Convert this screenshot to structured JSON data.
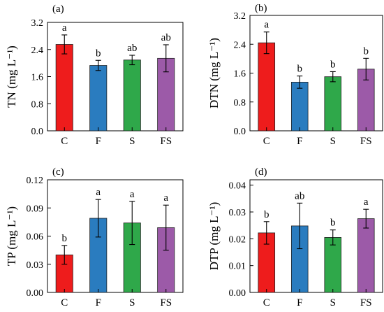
{
  "chart_data": [
    {
      "type": "bar",
      "panel": "(a)",
      "ylabel": "TN (mg L⁻¹)",
      "categories": [
        "C",
        "F",
        "S",
        "FS"
      ],
      "values": [
        2.55,
        1.93,
        2.09,
        2.14
      ],
      "errors": [
        0.28,
        0.15,
        0.14,
        0.4
      ],
      "significance": [
        "a",
        "b",
        "ab",
        "ab"
      ],
      "colors": [
        "#ee1c1c",
        "#2a7cbf",
        "#2fa84a",
        "#9c5aa8"
      ],
      "ylim": [
        0,
        3.2
      ],
      "yticks": [
        "0.0",
        "0.8",
        "1.6",
        "2.4",
        "3.2"
      ]
    },
    {
      "type": "bar",
      "panel": "(b)",
      "ylabel": "DTN (mg L⁻¹)",
      "categories": [
        "C",
        "F",
        "S",
        "FS"
      ],
      "values": [
        2.44,
        1.35,
        1.5,
        1.71
      ],
      "errors": [
        0.3,
        0.17,
        0.14,
        0.3
      ],
      "significance": [
        "a",
        "b",
        "b",
        "b"
      ],
      "colors": [
        "#ee1c1c",
        "#2a7cbf",
        "#2fa84a",
        "#9c5aa8"
      ],
      "ylim": [
        0,
        3.2
      ],
      "yticks": [
        "0.0",
        "0.8",
        "1.6",
        "2.4",
        "3.2"
      ]
    },
    {
      "type": "bar",
      "panel": "(c)",
      "ylabel": "TP (mg L⁻¹)",
      "categories": [
        "C",
        "F",
        "S",
        "FS"
      ],
      "values": [
        0.04,
        0.079,
        0.074,
        0.069
      ],
      "errors": [
        0.01,
        0.02,
        0.023,
        0.024
      ],
      "significance": [
        "b",
        "a",
        "a",
        "a"
      ],
      "colors": [
        "#ee1c1c",
        "#2a7cbf",
        "#2fa84a",
        "#9c5aa8"
      ],
      "ylim": [
        0,
        0.12
      ],
      "yticks": [
        "0.00",
        "0.03",
        "0.06",
        "0.09",
        "0.12"
      ]
    },
    {
      "type": "bar",
      "panel": "(d)",
      "ylabel": "DTP (mg L⁻¹)",
      "categories": [
        "C",
        "F",
        "S",
        "FS"
      ],
      "values": [
        0.0222,
        0.0248,
        0.0205,
        0.0275
      ],
      "errors": [
        0.0042,
        0.0085,
        0.0028,
        0.0035
      ],
      "significance": [
        "b",
        "ab",
        "b",
        "a"
      ],
      "colors": [
        "#ee1c1c",
        "#2a7cbf",
        "#2fa84a",
        "#9c5aa8"
      ],
      "ylim": [
        0,
        0.042
      ],
      "yticks": [
        "0.00",
        "0.01",
        "0.02",
        "0.03",
        "0.04"
      ]
    }
  ]
}
